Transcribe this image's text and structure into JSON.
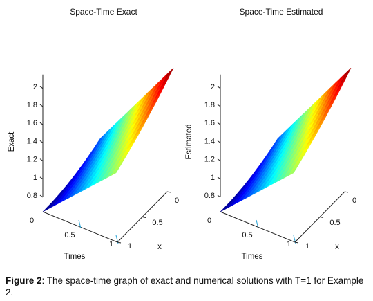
{
  "chart_data": [
    {
      "type": "surface3d",
      "title": "Space-Time Exact",
      "xlabel": "Times",
      "ylabel": "x",
      "zlabel": "Exact",
      "xticks": [
        "0",
        "0.5",
        "1"
      ],
      "yticks": [
        "1",
        "0.5",
        "0"
      ],
      "zticks": [
        "0.8",
        "1",
        "1.2",
        "1.4",
        "1.6",
        "1.8",
        "2"
      ],
      "xlim": [
        0,
        1
      ],
      "ylim": [
        0,
        1
      ],
      "zlim": [
        0.8,
        2.1
      ],
      "grid": false,
      "colormap": "jet",
      "surface_corners": [
        {
          "t": 0,
          "x": 0,
          "value": 0.72
        },
        {
          "t": 1,
          "x": 0,
          "value": 1.47
        },
        {
          "t": 0,
          "x": 1,
          "value": 1.0
        },
        {
          "t": 1,
          "x": 1,
          "value": 2.1
        }
      ]
    },
    {
      "type": "surface3d",
      "title": "Space-Time Estimated",
      "xlabel": "Times",
      "ylabel": "x",
      "zlabel": "Estimated",
      "xticks": [
        "0",
        "0.5",
        "1"
      ],
      "yticks": [
        "1",
        "0.5",
        "0"
      ],
      "zticks": [
        "0.8",
        "1",
        "1.2",
        "1.4",
        "1.6",
        "1.8",
        "2"
      ],
      "xlim": [
        0,
        1
      ],
      "ylim": [
        0,
        1
      ],
      "zlim": [
        0.8,
        2.1
      ],
      "grid": false,
      "colormap": "jet",
      "surface_corners": [
        {
          "t": 0,
          "x": 0,
          "value": 0.72
        },
        {
          "t": 1,
          "x": 0,
          "value": 1.47
        },
        {
          "t": 0,
          "x": 1,
          "value": 1.0
        },
        {
          "t": 1,
          "x": 1,
          "value": 2.1
        }
      ]
    }
  ],
  "caption": {
    "label": "Figure 2",
    "text": ": The space-time graph of exact and numerical solutions with T=1 for Example 2."
  }
}
